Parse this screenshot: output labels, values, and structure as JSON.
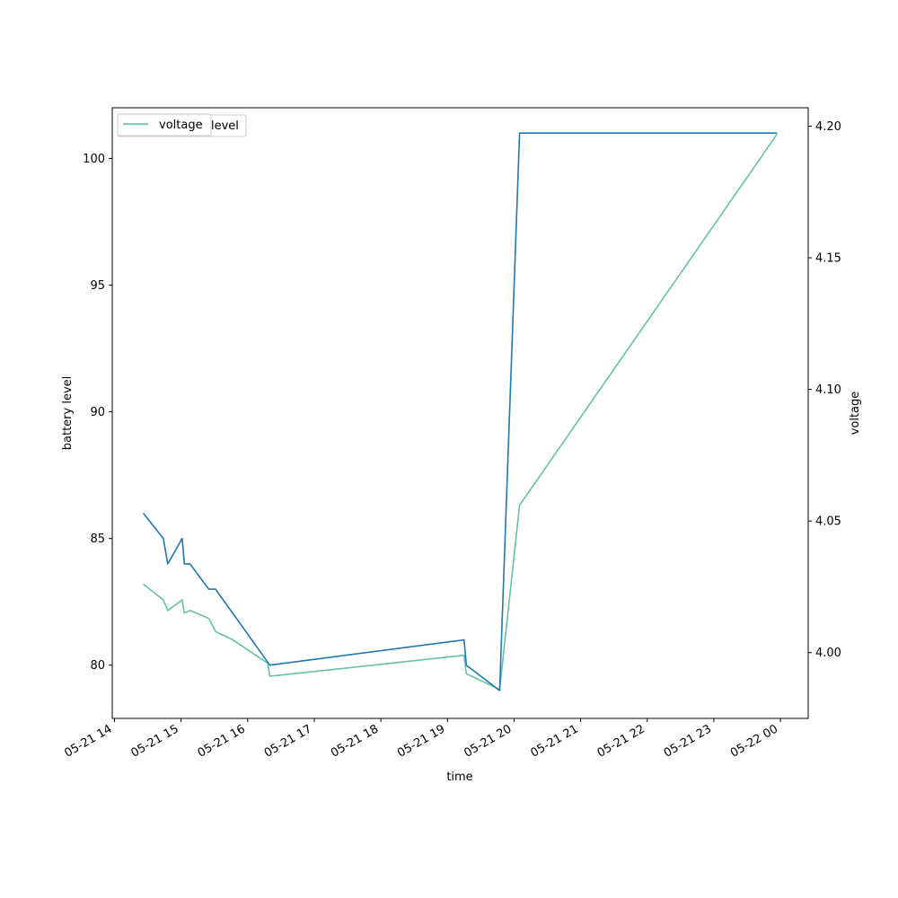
{
  "chart_data": {
    "type": "line",
    "xlabel": "time",
    "ylabel_left": "battery level",
    "ylabel_right": "voltage",
    "x_ticks": [
      "05-21 14",
      "05-21 15",
      "05-21 16",
      "05-21 17",
      "05-21 18",
      "05-21 19",
      "05-21 20",
      "05-21 21",
      "05-21 22",
      "05-21 23",
      "05-22 00"
    ],
    "x_range": [
      "2024-05-21 13:58",
      "2024-05-22 00:25"
    ],
    "y_left_ticks": [
      80,
      85,
      90,
      95,
      100
    ],
    "y_left_range": [
      77.9,
      102.0
    ],
    "y_right_ticks": [
      4.0,
      4.05,
      4.1,
      4.15,
      4.2
    ],
    "y_right_range": [
      3.975,
      4.207
    ],
    "legend": [
      {
        "label": "voltage",
        "color": "#66c2a5",
        "position": "upper-left"
      },
      {
        "label": "level",
        "color": "#1f77b4",
        "position": "upper-left"
      }
    ],
    "series": [
      {
        "name": "level",
        "axis": "left",
        "color": "#1f77b4",
        "points": [
          [
            "2024-05-21 14:26",
            86
          ],
          [
            "2024-05-21 14:44",
            85
          ],
          [
            "2024-05-21 14:48",
            84
          ],
          [
            "2024-05-21 15:01",
            85
          ],
          [
            "2024-05-21 15:03",
            84
          ],
          [
            "2024-05-21 15:08",
            84
          ],
          [
            "2024-05-21 15:25",
            83
          ],
          [
            "2024-05-21 15:31",
            83
          ],
          [
            "2024-05-21 16:20",
            80
          ],
          [
            "2024-05-21 19:15",
            81
          ],
          [
            "2024-05-21 19:17",
            80
          ],
          [
            "2024-05-21 19:47",
            79
          ],
          [
            "2024-05-21 20:05",
            101
          ],
          [
            "2024-05-21 23:57",
            101
          ]
        ]
      },
      {
        "name": "voltage",
        "axis": "right",
        "color": "#66c2a5",
        "points": [
          [
            "2024-05-21 14:26",
            4.026
          ],
          [
            "2024-05-21 14:44",
            4.02
          ],
          [
            "2024-05-21 14:48",
            4.016
          ],
          [
            "2024-05-21 15:01",
            4.02
          ],
          [
            "2024-05-21 15:03",
            4.015
          ],
          [
            "2024-05-21 15:08",
            4.016
          ],
          [
            "2024-05-21 15:25",
            4.013
          ],
          [
            "2024-05-21 15:31",
            4.008
          ],
          [
            "2024-05-21 15:46",
            4.005
          ],
          [
            "2024-05-21 16:18",
            3.996
          ],
          [
            "2024-05-21 16:20",
            3.991
          ],
          [
            "2024-05-21 19:15",
            3.999
          ],
          [
            "2024-05-21 19:17",
            3.992
          ],
          [
            "2024-05-21 19:47",
            3.986
          ],
          [
            "2024-05-21 20:05",
            4.056
          ],
          [
            "2024-05-21 23:57",
            4.197
          ]
        ]
      }
    ]
  }
}
